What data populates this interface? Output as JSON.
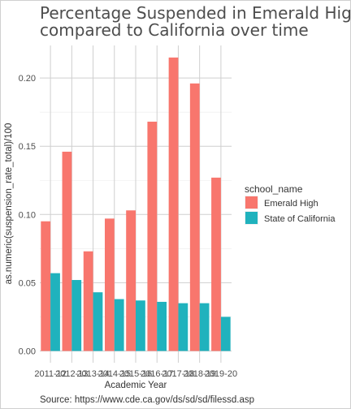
{
  "chart_data": {
    "type": "bar",
    "title": "Percentage Suspended in Emerald High compared to California over time",
    "title_lines": [
      "Percentage Suspended in Emerald High",
      "compared to California over time"
    ],
    "xlabel": "Academic Year",
    "ylabel": "as.numeric(suspension_rate_total)/100",
    "caption": "Source: https://www.cde.ca.gov/ds/sd/sd/filessd.asp",
    "categories": [
      "2011-12",
      "2012-13",
      "2013-14",
      "2014-15",
      "2015-16",
      "2016-17",
      "2017-18",
      "2018-19",
      "2019-20"
    ],
    "series": [
      {
        "name": "Emerald High",
        "color": "#F8766D",
        "values": [
          0.095,
          0.146,
          0.073,
          0.097,
          0.103,
          0.168,
          0.215,
          0.196,
          0.127
        ]
      },
      {
        "name": "State of California",
        "color": "#20B2BD",
        "values": [
          0.057,
          0.052,
          0.043,
          0.038,
          0.037,
          0.036,
          0.035,
          0.035,
          0.025
        ]
      }
    ],
    "yticks": [
      0.0,
      0.05,
      0.1,
      0.15,
      0.2
    ],
    "ytick_labels": [
      "0.00",
      "0.05",
      "0.10",
      "0.15",
      "0.20"
    ],
    "ylim": [
      -0.008,
      0.226
    ],
    "grid": true,
    "legend": {
      "title": "school_name",
      "position": "right"
    }
  }
}
